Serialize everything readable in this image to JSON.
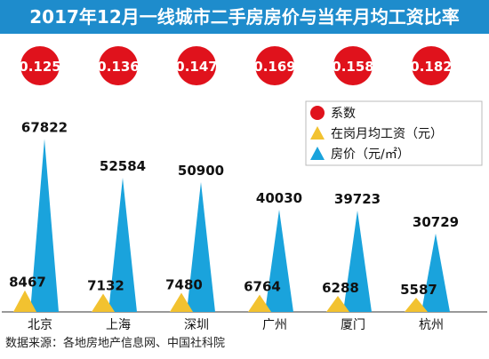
{
  "chart_data": {
    "type": "bar",
    "title": "2017年12月一线城市二手房房价与当年月均工资比率",
    "categories": [
      "北京",
      "上海",
      "深圳",
      "广州",
      "厦门",
      "杭州"
    ],
    "series": [
      {
        "name": "系数",
        "values": [
          0.125,
          0.136,
          0.147,
          0.169,
          0.158,
          0.182
        ]
      },
      {
        "name": "在岗月均工资（元）",
        "values": [
          8467,
          7132,
          7480,
          6764,
          6288,
          5587
        ]
      },
      {
        "name": "房价（元/㎡）",
        "values": [
          67822,
          52584,
          50900,
          40030,
          39723,
          30729
        ]
      }
    ],
    "ylim": [
      0,
      70000
    ],
    "legend_position": "top-right",
    "colors": {
      "ratio": "#e0121c",
      "salary": "#f2c230",
      "price": "#1aa3dc",
      "header": "#1e8ccc",
      "axis": "#333333"
    }
  },
  "source_note": "数据来源：各地房地产信息网、中国社科院"
}
